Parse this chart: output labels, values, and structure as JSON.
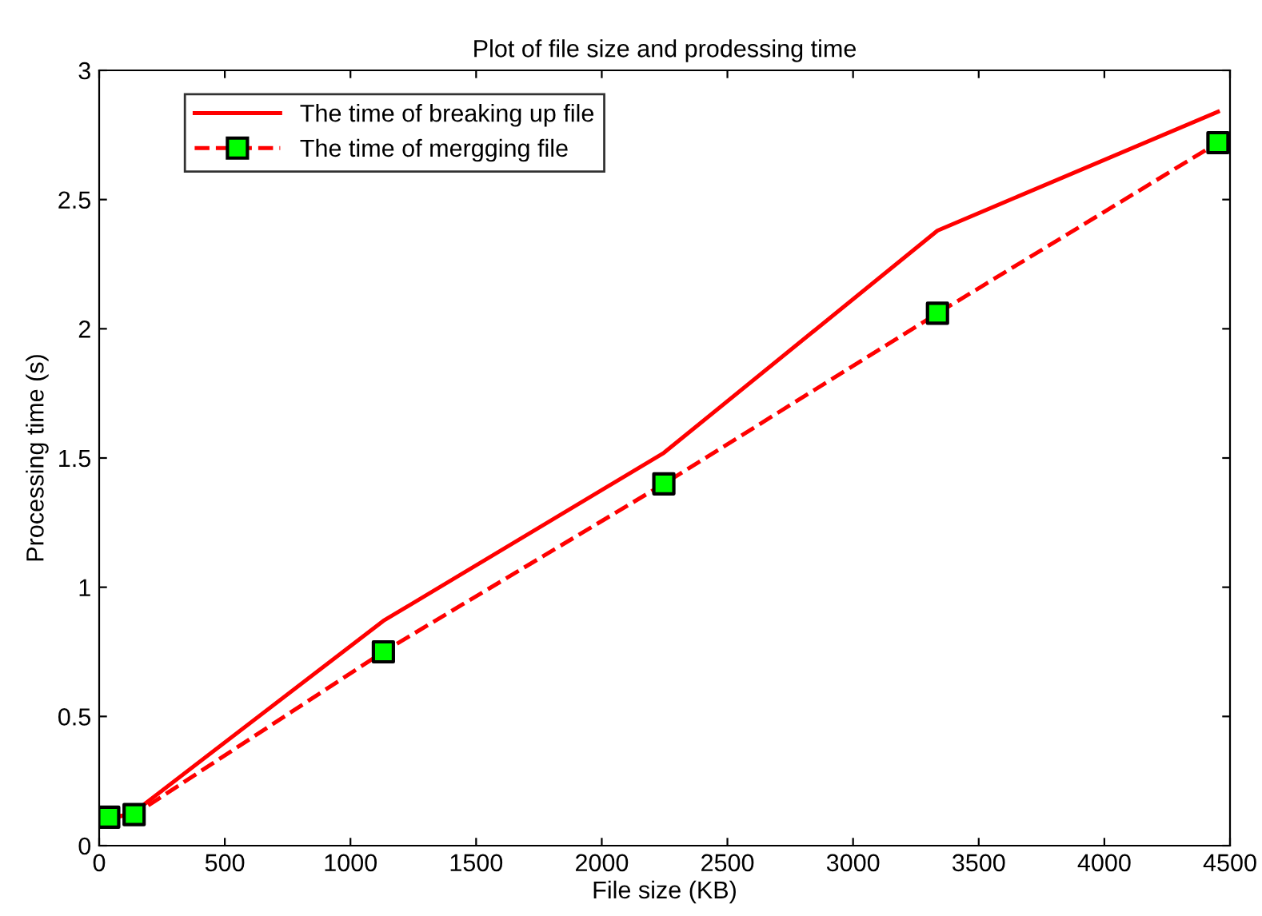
{
  "chart_data": {
    "type": "line",
    "title": "Plot of file size and prodessing time",
    "xlabel": "File size (KB)",
    "ylabel": "Processing time (s)",
    "x": [
      38,
      139,
      1131,
      2247,
      3336,
      4452
    ],
    "series": [
      {
        "name": "The time of breaking up file",
        "color": "#ff0000",
        "values": [
          0.1,
          0.13,
          0.87,
          1.52,
          2.38,
          2.84
        ],
        "marker": "none",
        "line_style": "solid"
      },
      {
        "name": "The time of mergging file",
        "color": "#ff0000",
        "values": [
          0.11,
          0.12,
          0.75,
          1.4,
          2.06,
          2.72
        ],
        "marker": "square",
        "line_style": "dashed",
        "colors": [
          "#00ff00",
          "#00ff00",
          "#00ff00",
          "#00ff00",
          "#00ff00",
          "#00ff00"
        ]
      }
    ],
    "xlim": [
      0,
      4500
    ],
    "xticks": [
      0,
      500,
      1000,
      1500,
      2000,
      2500,
      3000,
      3500,
      4000,
      4500
    ],
    "ylim": [
      0,
      3
    ],
    "yticks": [
      0,
      0.5,
      1,
      1.5,
      2,
      2.5,
      3
    ],
    "grid": false,
    "legend": "top left"
  }
}
